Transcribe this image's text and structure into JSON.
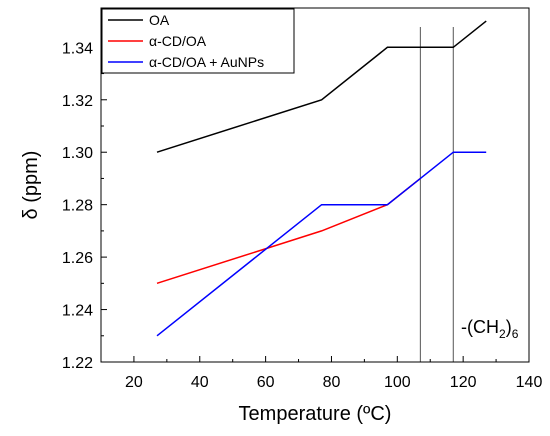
{
  "chart_data": {
    "type": "line",
    "xlabel": "Temperature (ºC)",
    "ylabel": "δ (ppm)",
    "xlim": [
      10,
      140
    ],
    "ylim": [
      1.22,
      1.355
    ],
    "x_ticks": [
      20,
      40,
      60,
      80,
      100,
      120,
      140
    ],
    "y_ticks": [
      1.22,
      1.24,
      1.26,
      1.28,
      1.3,
      1.32,
      1.34
    ],
    "x_tick_labels": [
      "20",
      "40",
      "60",
      "80",
      "100",
      "120",
      "140"
    ],
    "y_tick_labels": [
      "1.22",
      "1.24",
      "1.26",
      "1.28",
      "1.30",
      "1.32",
      "1.34"
    ],
    "legend_position": "top-left",
    "grid": false,
    "series": [
      {
        "name": "OA",
        "color": "#000000",
        "x": [
          27,
          77,
          97,
          117,
          127
        ],
        "y": [
          1.3,
          1.32,
          1.34,
          1.34,
          1.35
        ]
      },
      {
        "name": "α-CD/OA",
        "color": "#ff0000",
        "x": [
          27,
          77,
          97,
          107
        ],
        "y": [
          1.25,
          1.27,
          1.28,
          1.29
        ]
      },
      {
        "name": "α-CD/OA + AuNPs",
        "color": "#0000ff",
        "x": [
          27,
          77,
          97,
          107,
          117,
          127
        ],
        "y": [
          1.23,
          1.28,
          1.28,
          1.29,
          1.3,
          1.3
        ]
      }
    ],
    "vertical_lines": [
      107,
      117
    ],
    "annotation": {
      "main": "-(CH",
      "sub1": "2",
      "close": ")",
      "sub2": "6"
    }
  }
}
